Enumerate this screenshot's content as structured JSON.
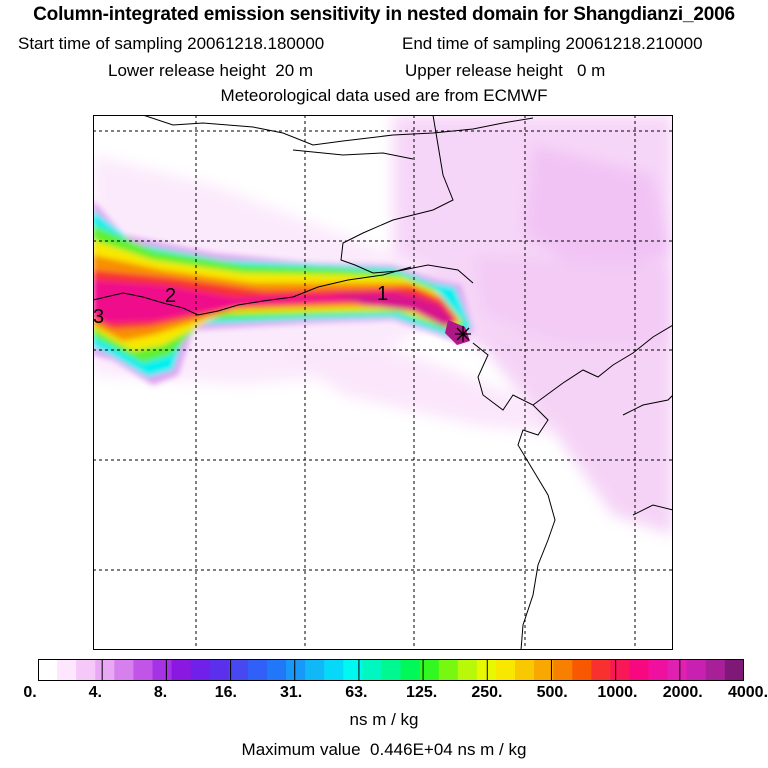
{
  "header": {
    "title": "Column-integrated emission sensitivity in nested domain for Shangdianzi_2006",
    "start_label": "Start time of sampling",
    "start_value": "20061218.180000",
    "end_label": "End time of sampling",
    "end_value": "20061218.210000",
    "lower_label": "Lower release height",
    "lower_value": "20 m",
    "upper_label": "Upper release height",
    "upper_value": "0 m",
    "met_line": "Meteorological data used are from ECMWF"
  },
  "map": {
    "contour_labels": [
      "1",
      "2",
      "3"
    ],
    "release_marker": "star",
    "gridlines": "dashed"
  },
  "colorbar": {
    "tick_labels": [
      "0.",
      "4.",
      "8.",
      "16.",
      "31.",
      "63.",
      "125.",
      "250.",
      "500.",
      "1000.",
      "2000.",
      "4000."
    ],
    "colors": [
      "#ffffff",
      "#ffe6ff",
      "#f6c8fa",
      "#e8a8f4",
      "#d680ee",
      "#c055e8",
      "#a532e4",
      "#8a18e0",
      "#7020e8",
      "#5a30ec",
      "#4848f0",
      "#3060f8",
      "#2078f8",
      "#1898f8",
      "#10b8f8",
      "#08d8f8",
      "#00f8f0",
      "#00f8c0",
      "#00f890",
      "#00f858",
      "#30f820",
      "#78f810",
      "#b8f808",
      "#e8f800",
      "#f8e800",
      "#f8c800",
      "#f8a800",
      "#f88000",
      "#f85800",
      "#f83030",
      "#f81858",
      "#f80880",
      "#f010a0",
      "#e020b0",
      "#c820b0",
      "#a82098",
      "#801878"
    ],
    "units": "ns m / kg"
  },
  "footer": {
    "max_label": "Maximum value",
    "max_value": "0.446E+04 ns m / kg"
  }
}
